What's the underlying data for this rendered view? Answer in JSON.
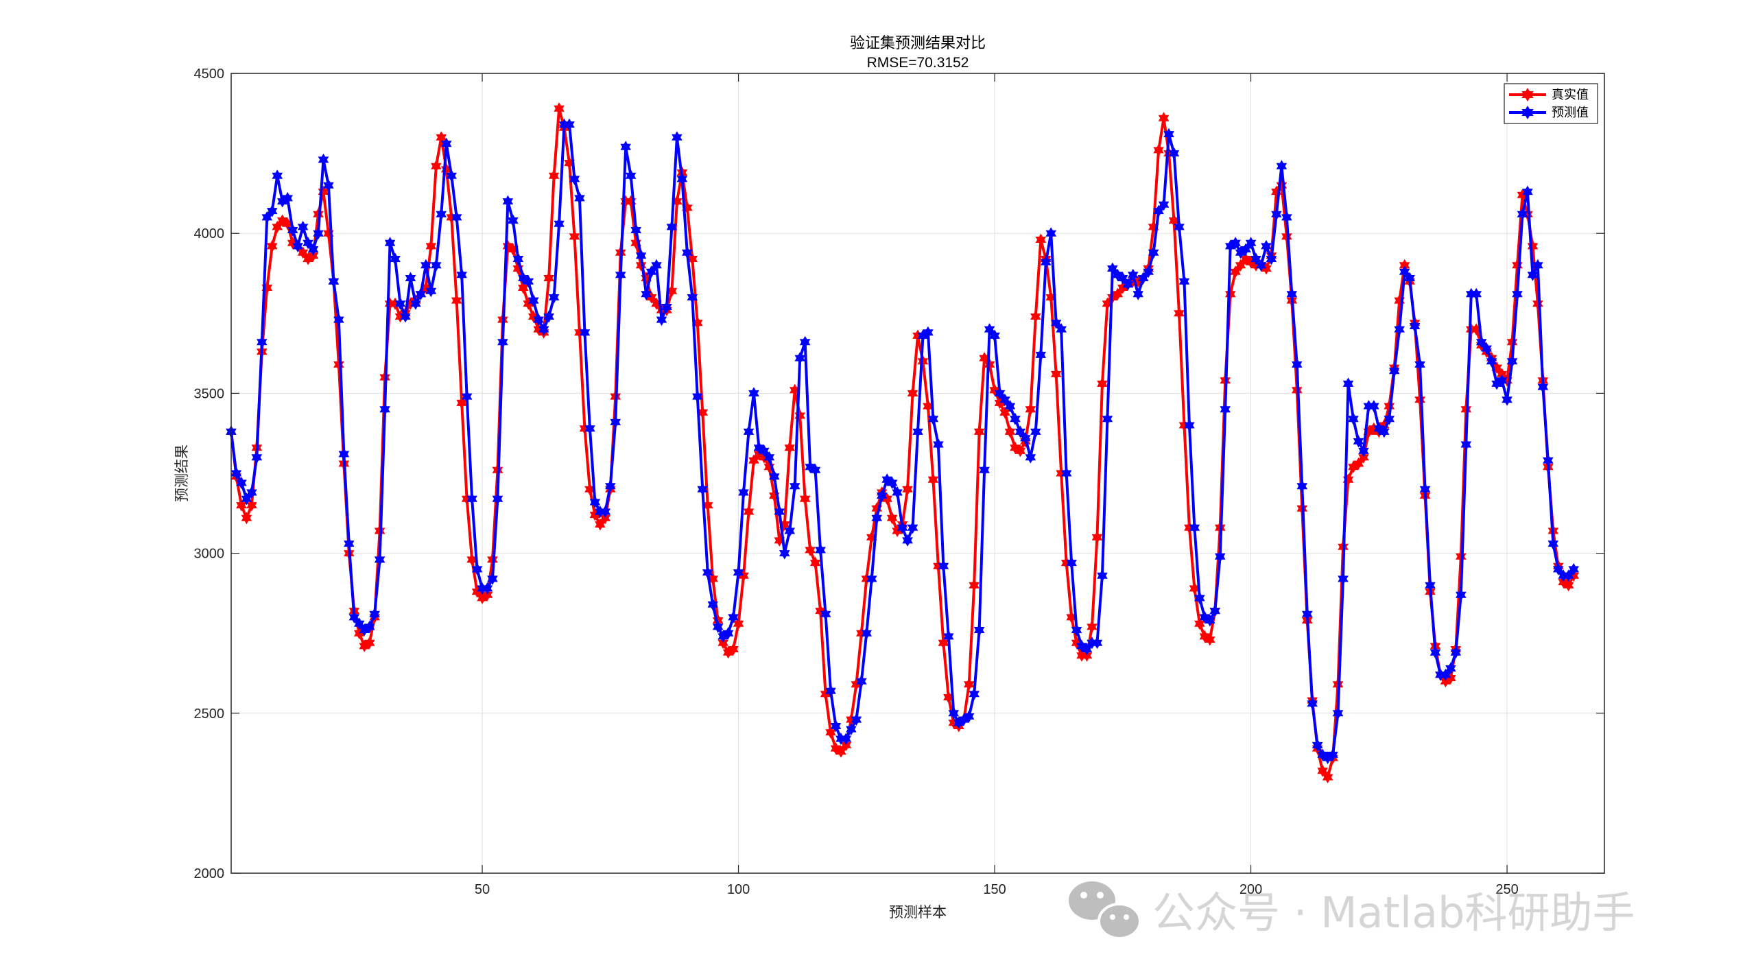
{
  "chart_data": {
    "type": "line",
    "title": "验证集预测结果对比",
    "subtitle": "RMSE=70.3152",
    "xlabel": "预测样本",
    "ylabel": "预测结果",
    "xlim": [
      1,
      269
    ],
    "ylim": [
      2000,
      4500
    ],
    "xticks": [
      50,
      100,
      150,
      200,
      250
    ],
    "yticks": [
      2000,
      2500,
      3000,
      3500,
      4000,
      4500
    ],
    "grid": true,
    "legend_position": "top-right",
    "series": [
      {
        "name": "真实值",
        "color": "#ff0000",
        "marker": "hexagram",
        "values": [
          3380,
          3240,
          3150,
          3110,
          3150,
          3330,
          3630,
          3830,
          3960,
          4020,
          4040,
          4030,
          3970,
          3960,
          3940,
          3920,
          3930,
          4060,
          4130,
          4000,
          3850,
          3590,
          3280,
          3000,
          2820,
          2750,
          2710,
          2720,
          2800,
          3070,
          3550,
          3780,
          3780,
          3740,
          3750,
          3780,
          3790,
          3810,
          3830,
          3960,
          4210,
          4300,
          4200,
          4050,
          3790,
          3470,
          3170,
          2980,
          2880,
          2860,
          2870,
          2980,
          3260,
          3730,
          3960,
          3950,
          3890,
          3830,
          3780,
          3740,
          3700,
          3690,
          3860,
          4180,
          4390,
          4330,
          4220,
          3990,
          3690,
          3390,
          3200,
          3120,
          3090,
          3110,
          3200,
          3490,
          3940,
          4100,
          4100,
          3970,
          3900,
          3860,
          3800,
          3780,
          3760,
          3760,
          3820,
          4100,
          4190,
          4080,
          3920,
          3720,
          3440,
          3150,
          2920,
          2790,
          2720,
          2690,
          2700,
          2780,
          2930,
          3130,
          3290,
          3310,
          3300,
          3270,
          3180,
          3040,
          3090,
          3330,
          3510,
          3430,
          3170,
          3010,
          2970,
          2820,
          2560,
          2440,
          2390,
          2380,
          2400,
          2480,
          2590,
          2750,
          2920,
          3050,
          3140,
          3190,
          3170,
          3110,
          3070,
          3090,
          3200,
          3500,
          3680,
          3600,
          3460,
          3230,
          2960,
          2720,
          2550,
          2470,
          2460,
          2480,
          2590,
          2900,
          3380,
          3610,
          3590,
          3510,
          3470,
          3440,
          3380,
          3330,
          3320,
          3350,
          3450,
          3740,
          3980,
          3920,
          3800,
          3560,
          3250,
          2970,
          2800,
          2720,
          2680,
          2680,
          2770,
          3050,
          3530,
          3780,
          3800,
          3810,
          3830,
          3840,
          3850,
          3850,
          3860,
          3890,
          4020,
          4260,
          4360,
          4250,
          4040,
          3750,
          3400,
          3080,
          2890,
          2780,
          2740,
          2730,
          2820,
          3080,
          3540,
          3810,
          3880,
          3900,
          3920,
          3910,
          3900,
          3900,
          3890,
          3930,
          4130,
          4150,
          3990,
          3790,
          3510,
          3140,
          2790,
          2540,
          2390,
          2320,
          2300,
          2360,
          2590,
          3020,
          3230,
          3270,
          3280,
          3300,
          3380,
          3390,
          3380,
          3400,
          3460,
          3580,
          3790,
          3900,
          3850,
          3720,
          3480,
          3180,
          2880,
          2710,
          2620,
          2600,
          2610,
          2700,
          2990,
          3450,
          3700,
          3700,
          3650,
          3630,
          3610,
          3580,
          3560,
          3540,
          3660,
          3900,
          4120,
          4060,
          3960,
          3780,
          3540,
          3270,
          3070,
          2960,
          2910,
          2900,
          2930
        ]
      },
      {
        "name": "预测值",
        "color": "#0000ff",
        "marker": "hexagram",
        "values": [
          3380,
          3250,
          3220,
          3170,
          3190,
          3300,
          3660,
          4050,
          4070,
          4180,
          4100,
          4110,
          4010,
          3960,
          4020,
          3970,
          3950,
          4000,
          4230,
          4150,
          3850,
          3730,
          3310,
          3030,
          2800,
          2780,
          2760,
          2770,
          2810,
          2980,
          3450,
          3970,
          3920,
          3780,
          3740,
          3860,
          3780,
          3810,
          3900,
          3820,
          3900,
          4060,
          4280,
          4180,
          4050,
          3870,
          3490,
          3170,
          2950,
          2890,
          2890,
          2920,
          3170,
          3660,
          4100,
          4040,
          3920,
          3860,
          3850,
          3790,
          3730,
          3700,
          3740,
          3800,
          4030,
          4340,
          4340,
          4170,
          4110,
          3690,
          3390,
          3160,
          3130,
          3130,
          3210,
          3410,
          3870,
          4270,
          4180,
          4010,
          3930,
          3810,
          3880,
          3900,
          3730,
          3770,
          4020,
          4300,
          4170,
          3940,
          3800,
          3490,
          3200,
          2940,
          2840,
          2770,
          2740,
          2750,
          2800,
          2940,
          3190,
          3380,
          3500,
          3330,
          3320,
          3300,
          3240,
          3130,
          3000,
          3070,
          3210,
          3610,
          3660,
          3270,
          3260,
          3010,
          2810,
          2570,
          2460,
          2420,
          2420,
          2450,
          2480,
          2600,
          2750,
          2920,
          3110,
          3180,
          3230,
          3220,
          3190,
          3080,
          3040,
          3080,
          3380,
          3680,
          3690,
          3420,
          3340,
          2960,
          2740,
          2500,
          2470,
          2480,
          2490,
          2560,
          2760,
          3260,
          3700,
          3680,
          3500,
          3480,
          3460,
          3420,
          3380,
          3360,
          3300,
          3380,
          3620,
          3910,
          4000,
          3720,
          3700,
          3250,
          2970,
          2760,
          2710,
          2700,
          2720,
          2720,
          2930,
          3420,
          3890,
          3870,
          3860,
          3840,
          3870,
          3810,
          3860,
          3880,
          3940,
          4070,
          4090,
          4310,
          4250,
          4020,
          3850,
          3400,
          3080,
          2860,
          2800,
          2790,
          2820,
          2990,
          3450,
          3960,
          3970,
          3940,
          3950,
          3970,
          3920,
          3900,
          3960,
          3920,
          4060,
          4210,
          4050,
          3810,
          3590,
          3210,
          2810,
          2530,
          2400,
          2370,
          2360,
          2370,
          2500,
          2920,
          3530,
          3420,
          3350,
          3320,
          3460,
          3460,
          3390,
          3380,
          3420,
          3570,
          3700,
          3880,
          3860,
          3710,
          3590,
          3200,
          2900,
          2690,
          2620,
          2620,
          2640,
          2690,
          2870,
          3340,
          3810,
          3810,
          3660,
          3640,
          3600,
          3530,
          3540,
          3480,
          3600,
          3810,
          4060,
          4130,
          3870,
          3900,
          3520,
          3290,
          3030,
          2950,
          2930,
          2930,
          2950
        ]
      }
    ]
  },
  "watermark": {
    "icon": "wechat-icon",
    "text": "公众号 · Matlab科研助手"
  }
}
